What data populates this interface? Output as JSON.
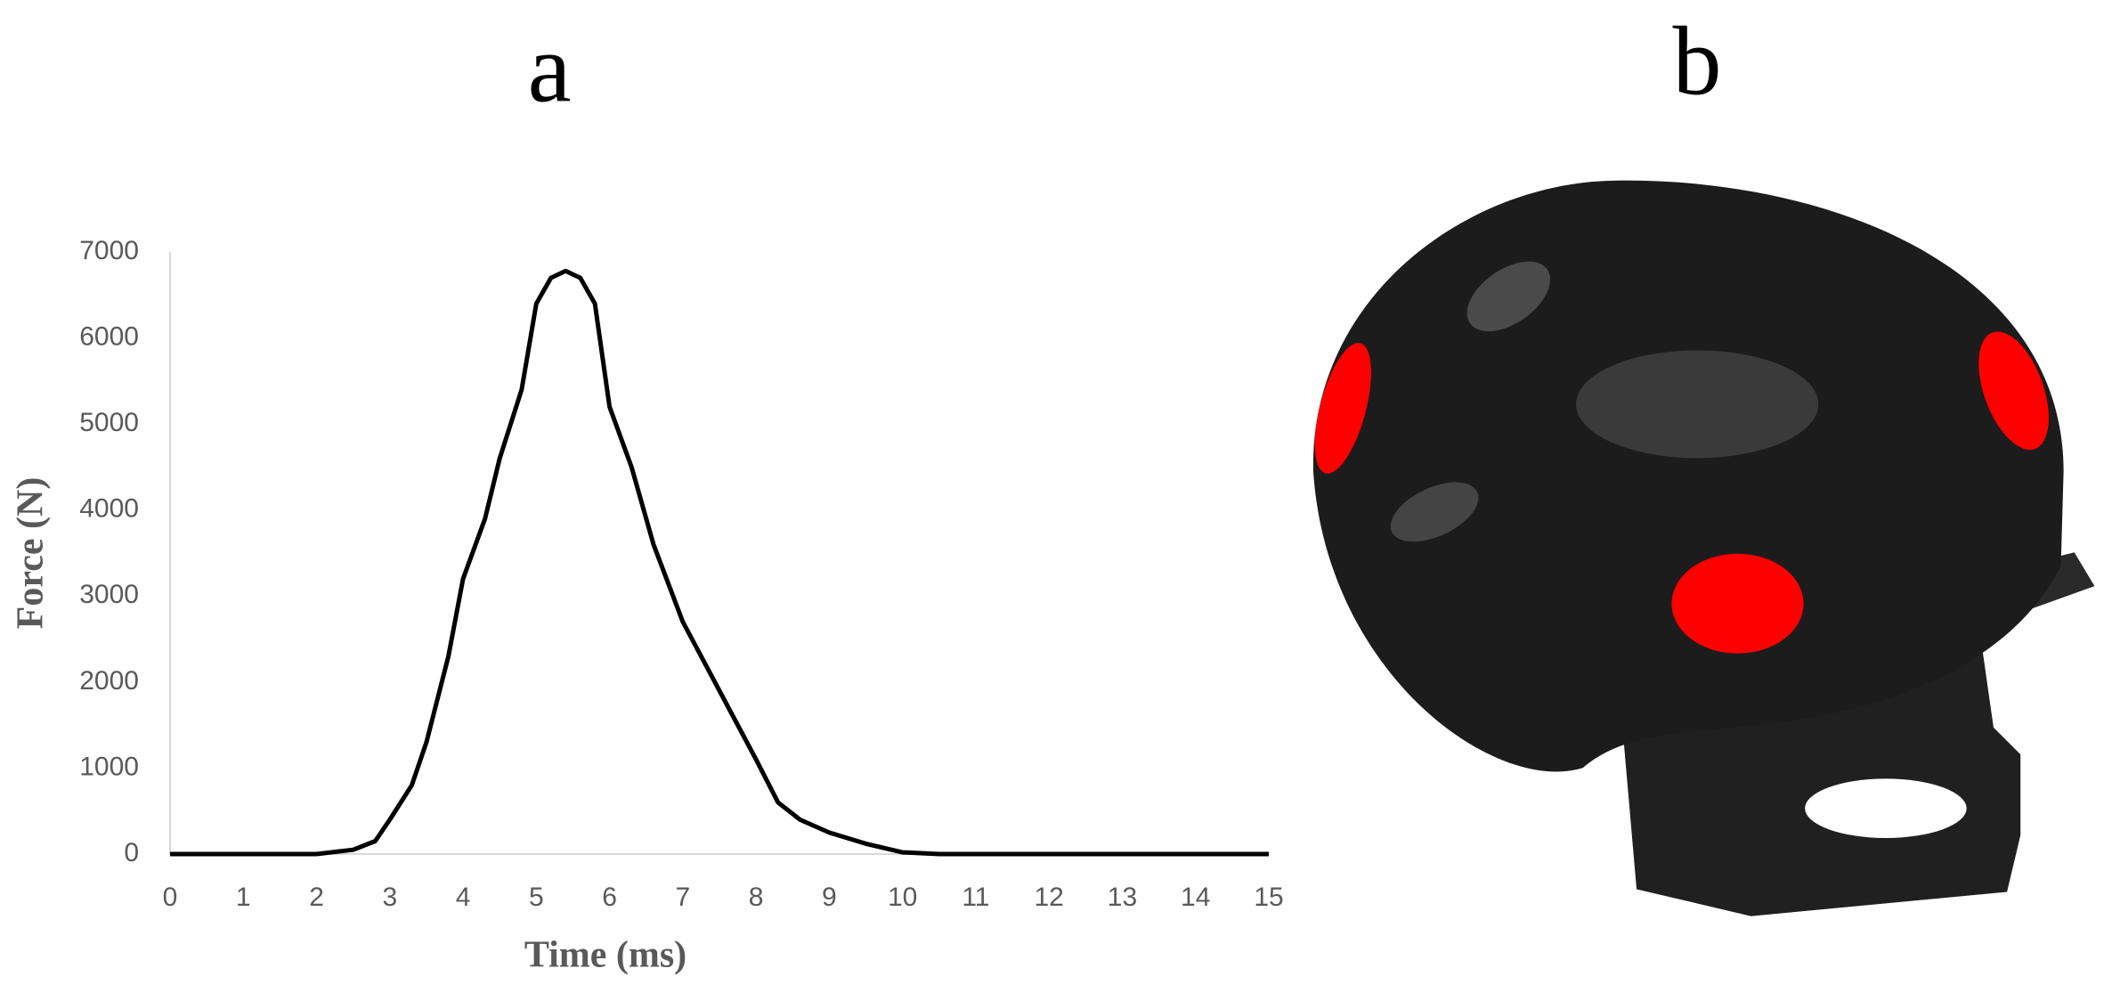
{
  "chart_data": {
    "type": "line",
    "panel_label": "a",
    "x_label": "Time (ms)",
    "y_label": "Force (N)",
    "x": [
      0,
      1,
      2,
      2.5,
      2.8,
      3,
      3.3,
      3.5,
      3.8,
      4,
      4.3,
      4.5,
      4.8,
      5,
      5.2,
      5.4,
      5.6,
      5.8,
      6,
      6.3,
      6.6,
      7,
      7.5,
      8,
      8.3,
      8.6,
      9,
      9.5,
      10,
      10.5,
      11,
      15
    ],
    "series": [
      {
        "color": "#000000",
        "values": [
          0,
          0,
          0,
          50,
          150,
          400,
          800,
          1300,
          2300,
          3200,
          3900,
          4600,
          5400,
          6400,
          6700,
          6780,
          6700,
          6400,
          5200,
          4500,
          3600,
          2700,
          1900,
          1100,
          600,
          400,
          250,
          120,
          20,
          0,
          0,
          0
        ]
      }
    ],
    "xlim": [
      0,
      15
    ],
    "xticks": [
      0,
      1,
      2,
      3,
      4,
      5,
      6,
      7,
      8,
      9,
      10,
      11,
      12,
      13,
      14,
      15
    ],
    "ylim": [
      0,
      7000
    ],
    "yticks": [
      0,
      1000,
      2000,
      3000,
      4000,
      5000,
      6000,
      7000
    ]
  },
  "figure_b": {
    "panel_label": "b"
  }
}
